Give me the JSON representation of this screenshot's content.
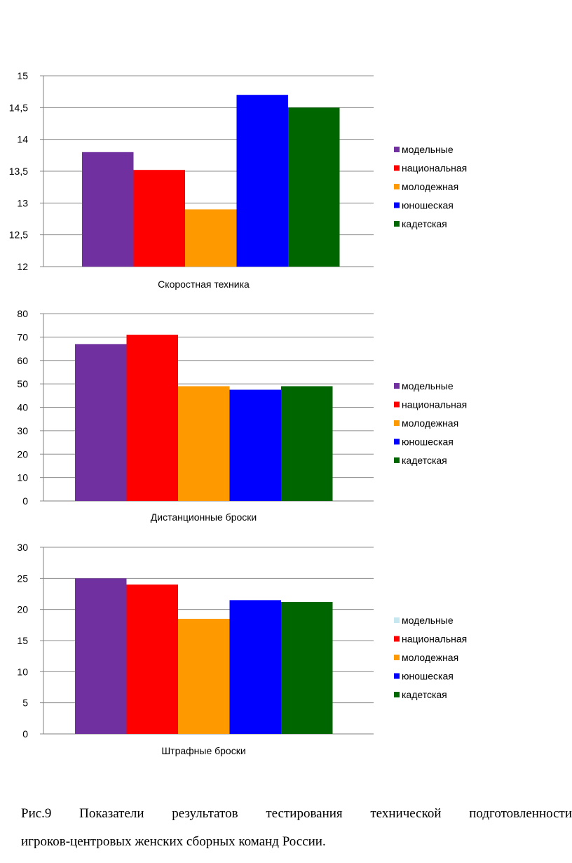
{
  "chart_data": [
    {
      "type": "bar",
      "xlabel": "Скоростная техника",
      "ylim": [
        12,
        15
      ],
      "yticks": [
        "12",
        "12,5",
        "13",
        "13,5",
        "14",
        "14,5",
        "15"
      ],
      "grid": true,
      "legend_position": "right",
      "series": [
        {
          "name": "модельные",
          "color": "#7030A0",
          "values": [
            13.8
          ]
        },
        {
          "name": "национальная",
          "color": "#FF0000",
          "values": [
            13.52
          ]
        },
        {
          "name": "молодежная",
          "color": "#FF9900",
          "values": [
            12.9
          ]
        },
        {
          "name": "юношеская",
          "color": "#0000FF",
          "values": [
            14.7
          ]
        },
        {
          "name": "кадетская",
          "color": "#006600",
          "values": [
            14.5
          ]
        }
      ]
    },
    {
      "type": "bar",
      "xlabel": "Дистанционные броски",
      "ylim": [
        0,
        80
      ],
      "yticks": [
        "0",
        "10",
        "20",
        "30",
        "40",
        "50",
        "60",
        "70",
        "80"
      ],
      "grid": true,
      "legend_position": "right",
      "series": [
        {
          "name": "модельные",
          "color": "#7030A0",
          "values": [
            67
          ]
        },
        {
          "name": "национальная",
          "color": "#FF0000",
          "values": [
            71
          ]
        },
        {
          "name": "молодежная",
          "color": "#FF9900",
          "values": [
            49
          ]
        },
        {
          "name": "юношеская",
          "color": "#0000FF",
          "values": [
            47.5
          ]
        },
        {
          "name": "кадетская",
          "color": "#006600",
          "values": [
            49
          ]
        }
      ]
    },
    {
      "type": "bar",
      "xlabel": "Штрафные броски",
      "ylim": [
        0,
        30
      ],
      "yticks": [
        "0",
        "5",
        "10",
        "15",
        "20",
        "25",
        "30"
      ],
      "grid": true,
      "legend_position": "right",
      "legend_swatch_override": {
        "модельные": "#C6E7EF"
      },
      "series": [
        {
          "name": "модельные",
          "color": "#7030A0",
          "values": [
            25
          ]
        },
        {
          "name": "национальная",
          "color": "#FF0000",
          "values": [
            24
          ]
        },
        {
          "name": "молодежная",
          "color": "#FF9900",
          "values": [
            18.5
          ]
        },
        {
          "name": "юношеская",
          "color": "#0000FF",
          "values": [
            21.5
          ]
        },
        {
          "name": "кадетская",
          "color": "#006600",
          "values": [
            21.2
          ]
        }
      ]
    }
  ],
  "caption": {
    "line1": "Рис.9   Показатели результатов тестирования технической подготовленности",
    "line2": "игроков-центровых женских сборных команд России."
  }
}
